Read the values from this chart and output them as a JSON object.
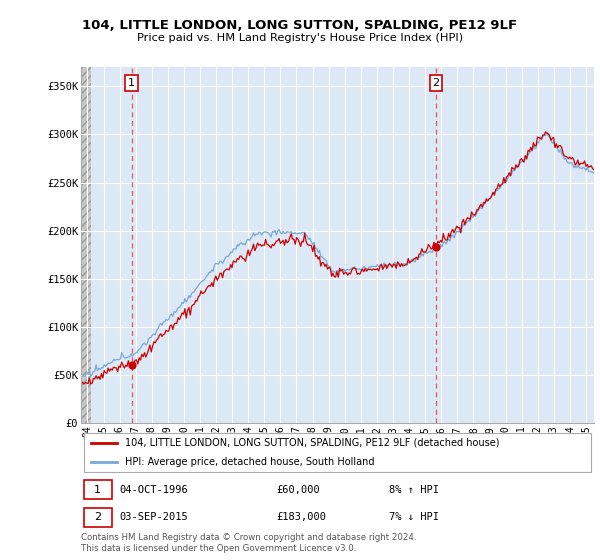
{
  "title1": "104, LITTLE LONDON, LONG SUTTON, SPALDING, PE12 9LF",
  "title2": "Price paid vs. HM Land Registry's House Price Index (HPI)",
  "ylabel_ticks": [
    "£0",
    "£50K",
    "£100K",
    "£150K",
    "£200K",
    "£250K",
    "£300K",
    "£350K"
  ],
  "ytick_vals": [
    0,
    50000,
    100000,
    150000,
    200000,
    250000,
    300000,
    350000
  ],
  "ylim": [
    0,
    370000
  ],
  "sale1_year": 1996.75,
  "sale1_price": 60000,
  "sale2_year": 2015.67,
  "sale2_price": 183000,
  "sale1_date_str": "04-OCT-1996",
  "sale1_price_str": "£60,000",
  "sale1_hpi_str": "8% ↑ HPI",
  "sale2_date_str": "03-SEP-2015",
  "sale2_price_str": "£183,000",
  "sale2_hpi_str": "7% ↓ HPI",
  "legend1": "104, LITTLE LONDON, LONG SUTTON, SPALDING, PE12 9LF (detached house)",
  "legend2": "HPI: Average price, detached house, South Holland",
  "footer": "Contains HM Land Registry data © Crown copyright and database right 2024.\nThis data is licensed under the Open Government Licence v3.0.",
  "line_color_sale": "#cc0000",
  "line_color_hpi": "#7aa8d4",
  "plot_bg": "#dce8f5",
  "xlim_start": 1993.6,
  "xlim_end": 2025.5,
  "hatch_end": 1994.2
}
